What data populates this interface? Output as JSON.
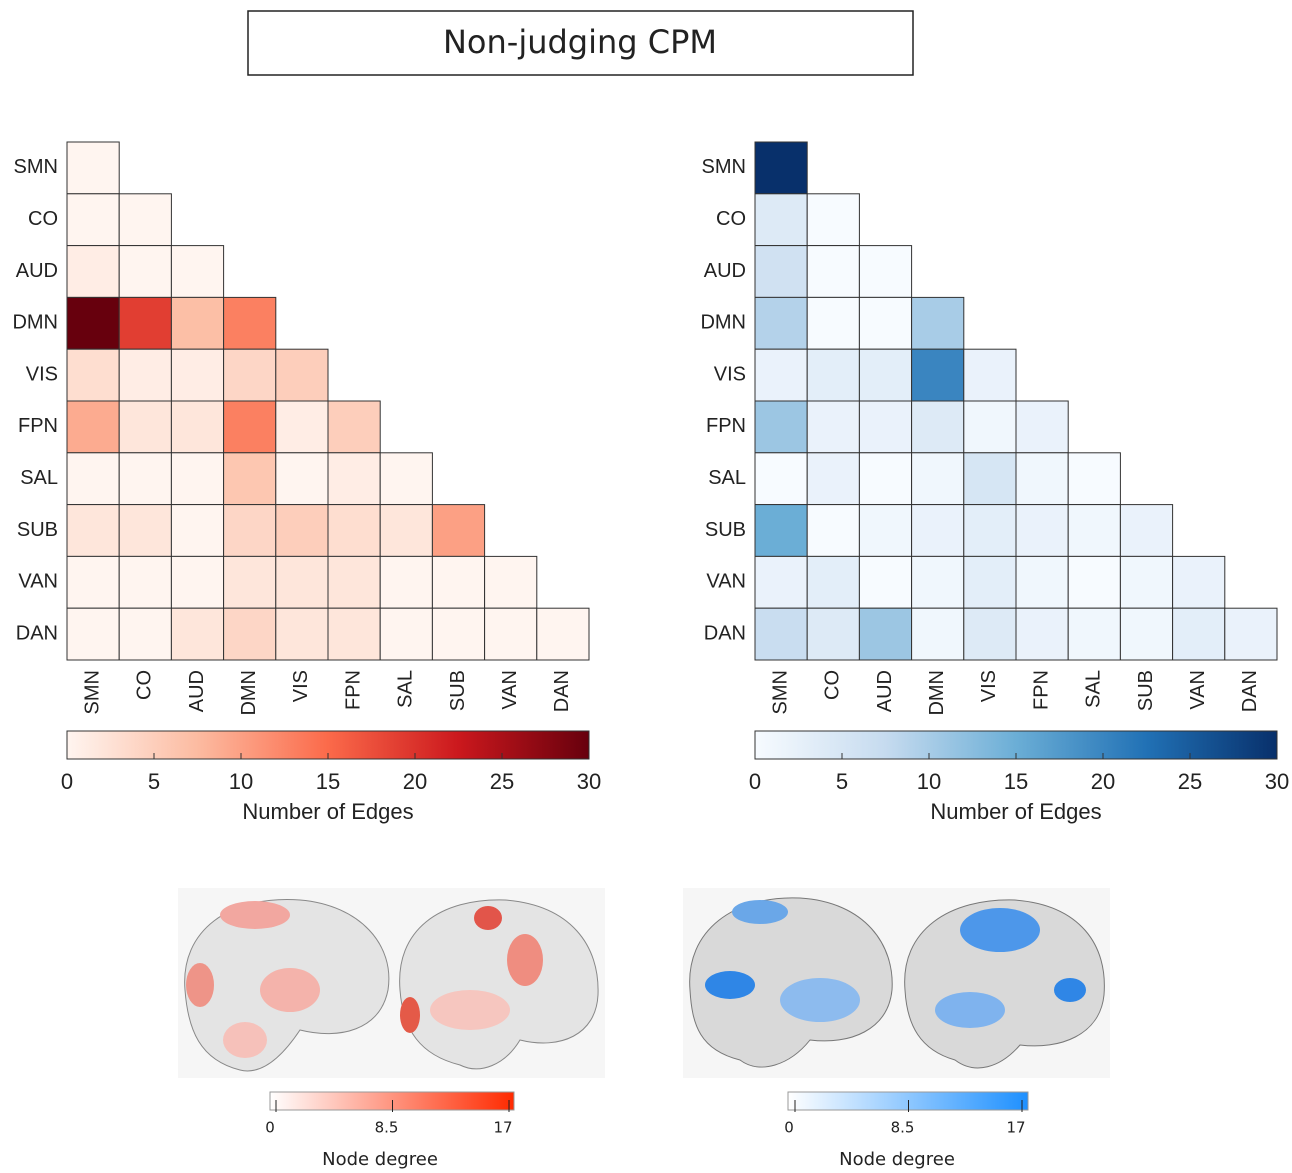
{
  "title": "Non-judging CPM",
  "chart_data": [
    {
      "type": "heatmap",
      "categories": [
        "SMN",
        "CO",
        "AUD",
        "DMN",
        "VIS",
        "FPN",
        "SAL",
        "SUB",
        "VAN",
        "DAN"
      ],
      "matrix": [
        [
          0
        ],
        [
          0,
          0
        ],
        [
          1,
          0,
          0
        ],
        [
          30,
          19,
          7,
          13
        ],
        [
          3,
          1,
          1,
          4,
          5
        ],
        [
          9,
          2,
          2,
          13,
          1,
          5
        ],
        [
          0,
          0,
          0,
          6,
          0,
          1,
          0
        ],
        [
          2,
          2,
          0,
          4,
          5,
          3,
          2,
          10
        ],
        [
          0,
          0,
          0,
          2,
          2,
          2,
          0,
          0,
          0
        ],
        [
          0,
          0,
          2,
          4,
          2,
          2,
          0,
          0,
          0,
          0
        ]
      ],
      "colors": [
        "#fff5f0",
        "#fcbba1",
        "#fb6a4a",
        "#cb181d",
        "#67000d"
      ],
      "clim": [
        0,
        30
      ],
      "cticks": [
        0,
        5,
        10,
        15,
        20,
        25,
        30
      ],
      "clabel": "Number of Edges"
    },
    {
      "type": "heatmap",
      "categories": [
        "SMN",
        "CO",
        "AUD",
        "DMN",
        "VIS",
        "FPN",
        "SAL",
        "SUB",
        "VAN",
        "DAN"
      ],
      "matrix": [
        [
          30
        ],
        [
          4,
          0
        ],
        [
          6,
          0,
          0
        ],
        [
          9,
          0,
          0,
          10
        ],
        [
          2,
          3,
          3,
          20,
          2
        ],
        [
          11,
          2,
          2,
          4,
          1,
          2
        ],
        [
          0,
          2,
          0,
          1,
          5,
          1,
          0
        ],
        [
          15,
          0,
          1,
          2,
          3,
          2,
          1,
          2
        ],
        [
          2,
          3,
          0,
          1,
          3,
          1,
          0,
          1,
          2
        ],
        [
          7,
          4,
          11,
          1,
          4,
          2,
          1,
          1,
          3,
          2
        ]
      ],
      "colors": [
        "#f7fbff",
        "#c6dbef",
        "#6baed6",
        "#2171b5",
        "#08306b"
      ],
      "clim": [
        0,
        30
      ],
      "cticks": [
        0,
        5,
        10,
        15,
        20,
        25,
        30
      ],
      "clabel": "Number of Edges"
    },
    {
      "type": "colorbar",
      "colors": [
        "#ffffff",
        "#ff2a00"
      ],
      "xlim": [
        0,
        17
      ],
      "xticks": [
        0,
        8.5,
        17
      ],
      "xlabel": "Node degree"
    },
    {
      "type": "colorbar",
      "colors": [
        "#ffffff",
        "#1e90ff"
      ],
      "xlim": [
        0,
        17
      ],
      "xticks": [
        0,
        8.5,
        17
      ],
      "xlabel": "Node degree"
    }
  ]
}
